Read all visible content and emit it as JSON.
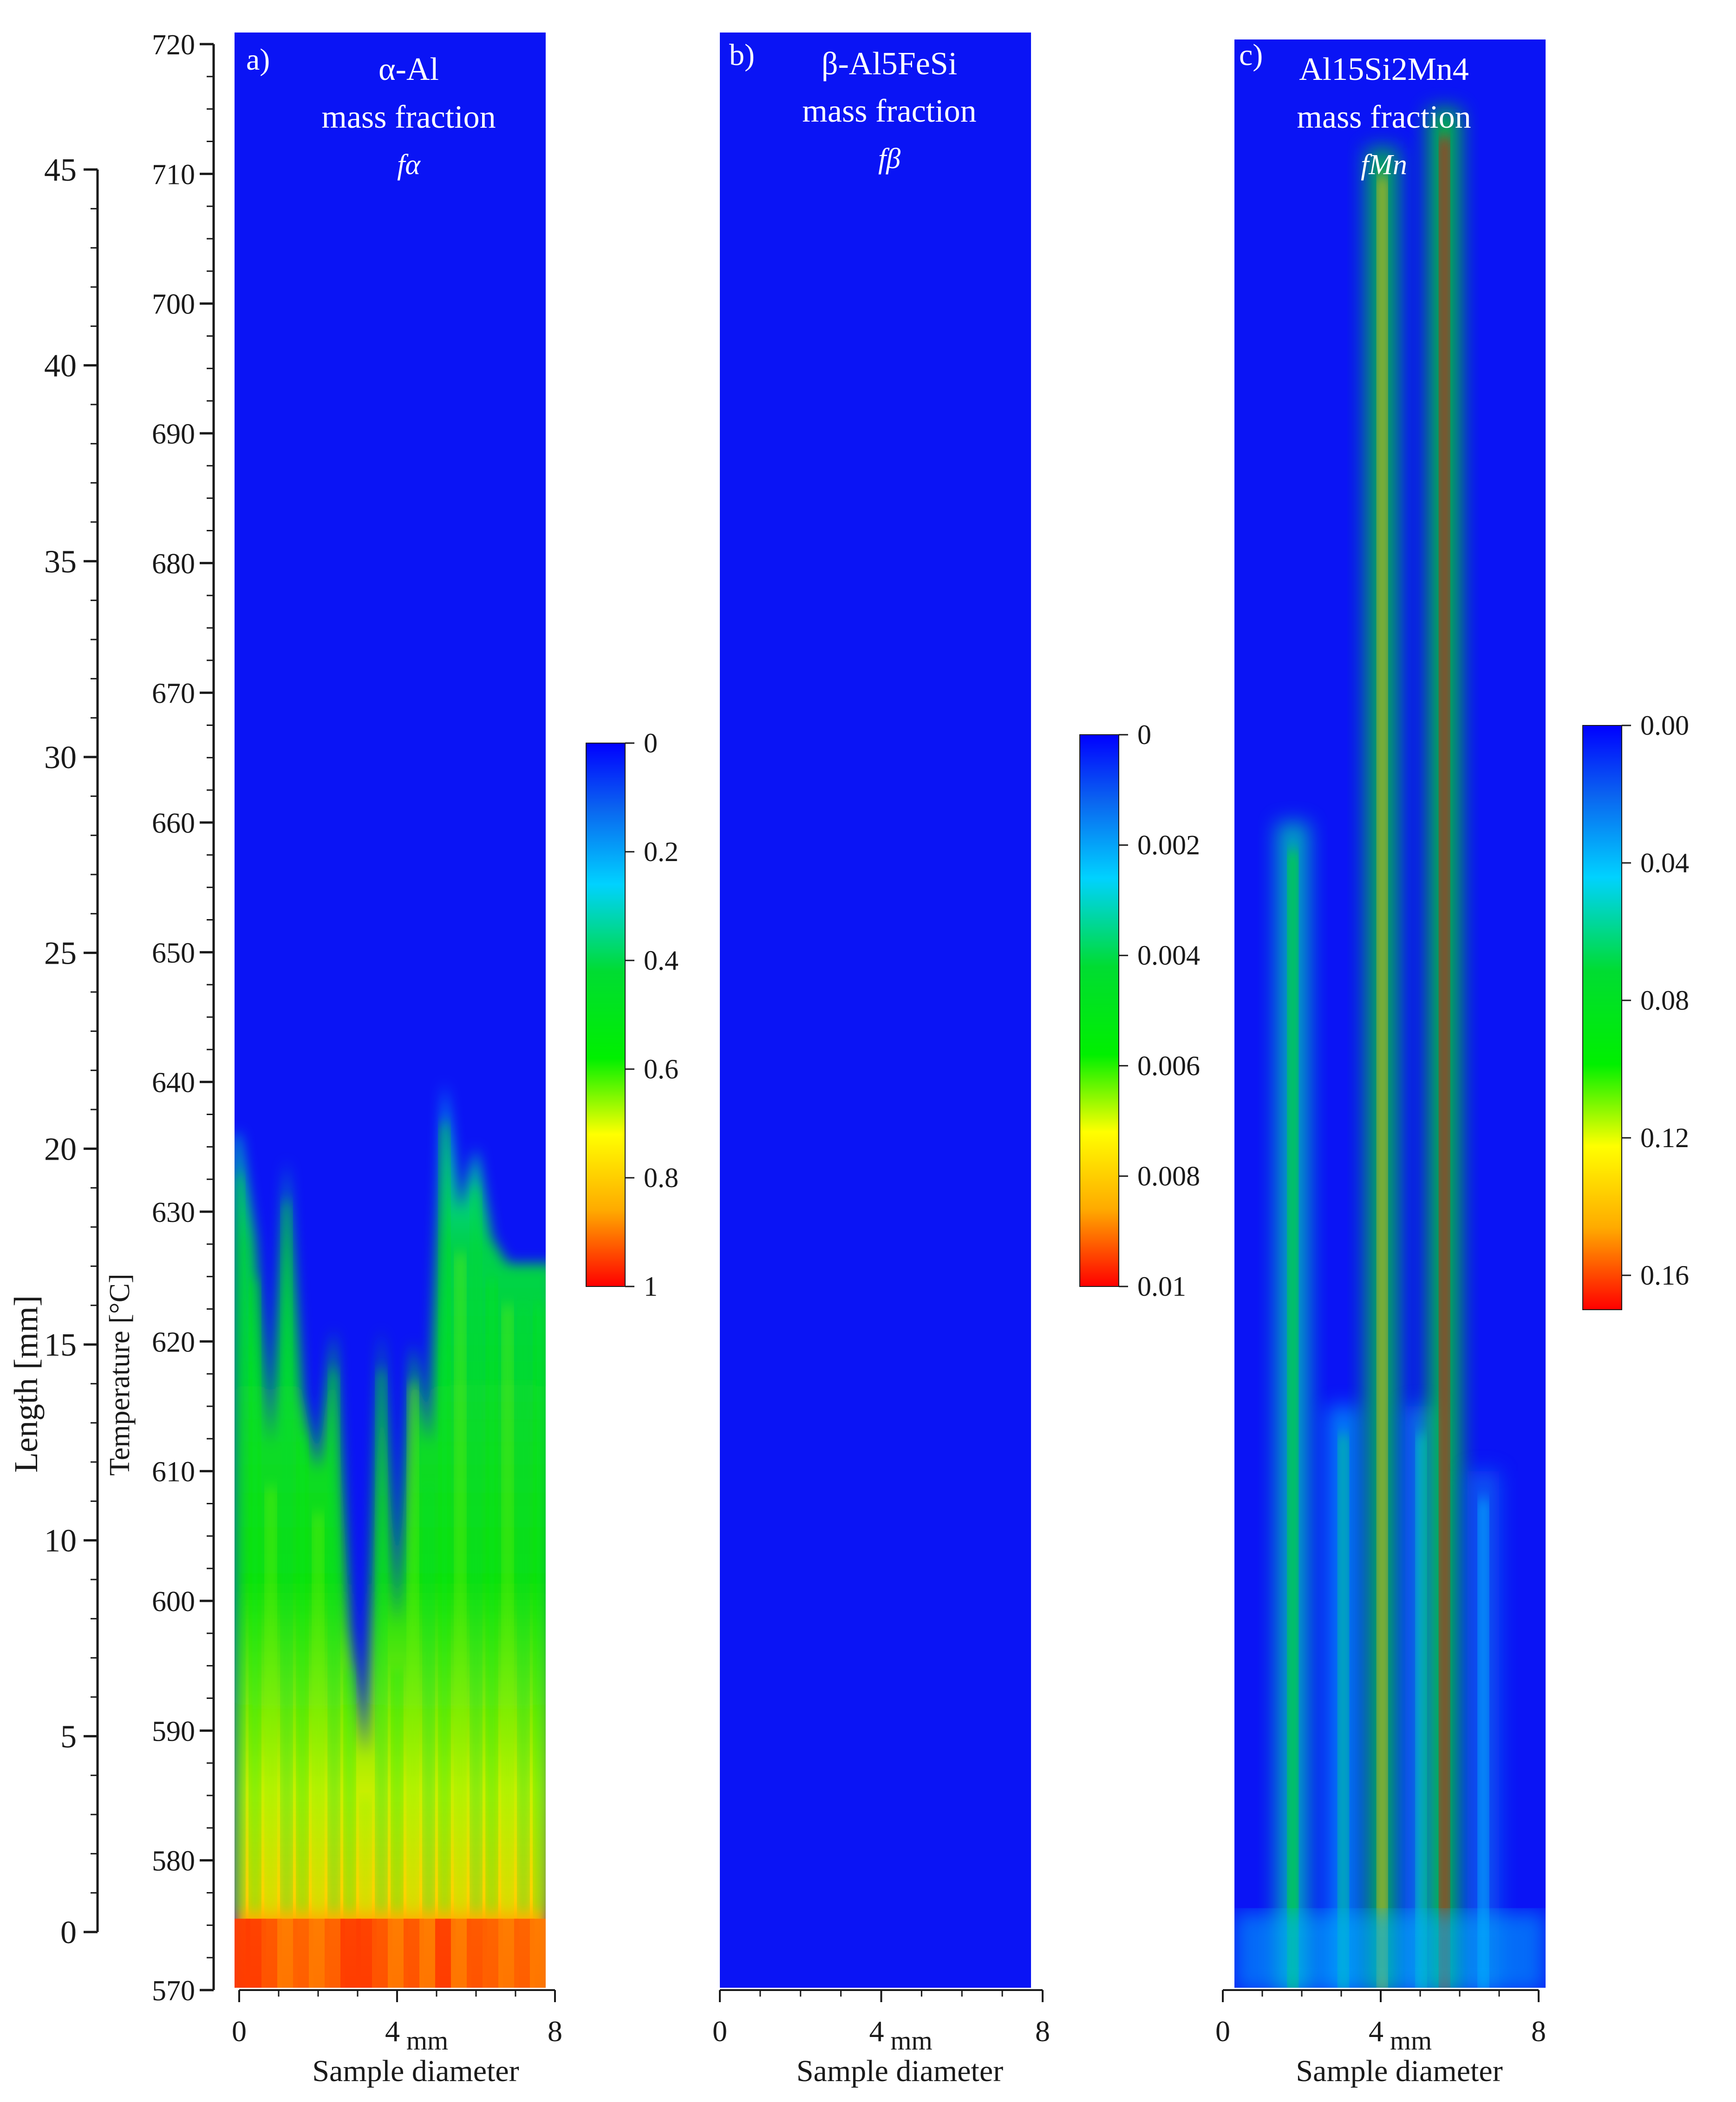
{
  "axes": {
    "length": {
      "label": "Length [mm]",
      "ticks": [
        "0",
        "5",
        "10",
        "15",
        "20",
        "25",
        "30",
        "35",
        "40",
        "45"
      ],
      "range": [
        0,
        45
      ]
    },
    "temperature": {
      "label": "Temperature [°C]",
      "ticks": [
        "570",
        "580",
        "590",
        "600",
        "610",
        "620",
        "630",
        "640",
        "650",
        "660",
        "670",
        "680",
        "690",
        "700",
        "710",
        "720"
      ],
      "range": [
        570,
        720
      ]
    }
  },
  "xaxis": {
    "label": "Sample diameter",
    "unit": "mm",
    "ticks": [
      "0",
      "4",
      "8"
    ],
    "range": [
      0,
      8
    ]
  },
  "colors": {
    "field_bg": "#0a14f5",
    "scale": [
      "#0000ff",
      "#0a64f0",
      "#00d2ff",
      "#00dc32",
      "#00f000",
      "#ffff00",
      "#ffaa00",
      "#ff0000"
    ]
  },
  "chart_data": [
    {
      "type": "heatmap",
      "panel": "a)",
      "title": "α-Al",
      "subtitle": "mass fraction",
      "symbol": "fα",
      "xlabel": "Sample diameter",
      "xunit": "mm",
      "xlim": [
        0,
        8
      ],
      "ylabel": "Temperature [°C]",
      "ylim": [
        570,
        720
      ],
      "colorbar": {
        "ticks": [
          "0",
          "0.2",
          "0.4",
          "0.6",
          "0.8",
          "1"
        ],
        "range": [
          0,
          1
        ]
      },
      "field": {
        "x": [
          0,
          0.4,
          0.8,
          1.2,
          1.6,
          2.0,
          2.4,
          2.8,
          3.2,
          3.6,
          4.0,
          4.4,
          4.8,
          5.2,
          5.6,
          6.0,
          6.4,
          6.8,
          7.2,
          7.6
        ],
        "front_temperature": [
          636,
          628,
          612,
          634,
          616,
          610,
          621,
          598,
          588,
          621,
          598,
          620,
          612,
          640,
          630,
          635,
          628,
          626,
          626,
          626
        ],
        "base_fraction": [
          0.95,
          0.95,
          0.93,
          0.9,
          0.92,
          0.9,
          0.92,
          0.95,
          0.95,
          0.93,
          0.9,
          0.93,
          0.9,
          0.95,
          0.9,
          0.93,
          0.92,
          0.9,
          0.92,
          0.9
        ]
      }
    },
    {
      "type": "heatmap",
      "panel": "b)",
      "title": "β-Al5FeSi",
      "subtitle": "mass fraction",
      "symbol": "fβ",
      "xlabel": "Sample diameter",
      "xunit": "mm",
      "xlim": [
        0,
        8
      ],
      "ylim": [
        570,
        720
      ],
      "colorbar": {
        "ticks": [
          "0",
          "0.002",
          "0.004",
          "0.006",
          "0.008",
          "0.01"
        ],
        "range": [
          0,
          0.01
        ]
      },
      "field": {
        "uniform_value": 0
      }
    },
    {
      "type": "heatmap",
      "panel": "c)",
      "title": "Al15Si2Mn4",
      "subtitle": "mass fraction",
      "symbol": "fMn",
      "xlabel": "Sample diameter",
      "xunit": "mm",
      "xlim": [
        0,
        8
      ],
      "ylim": [
        570,
        720
      ],
      "colorbar": {
        "ticks": [
          "0.00",
          "0.04",
          "0.08",
          "0.12",
          "0.16"
        ],
        "range": [
          0,
          0.17
        ]
      },
      "field": {
        "streaks": [
          {
            "x": 1.5,
            "top_temperature": 660,
            "peak": 0.1
          },
          {
            "x": 2.8,
            "top_temperature": 615,
            "peak": 0.06
          },
          {
            "x": 3.8,
            "top_temperature": 712,
            "peak": 0.14
          },
          {
            "x": 4.8,
            "top_temperature": 615,
            "peak": 0.05
          },
          {
            "x": 5.4,
            "top_temperature": 715,
            "peak": 0.17
          },
          {
            "x": 6.4,
            "top_temperature": 610,
            "peak": 0.04
          }
        ]
      }
    }
  ]
}
